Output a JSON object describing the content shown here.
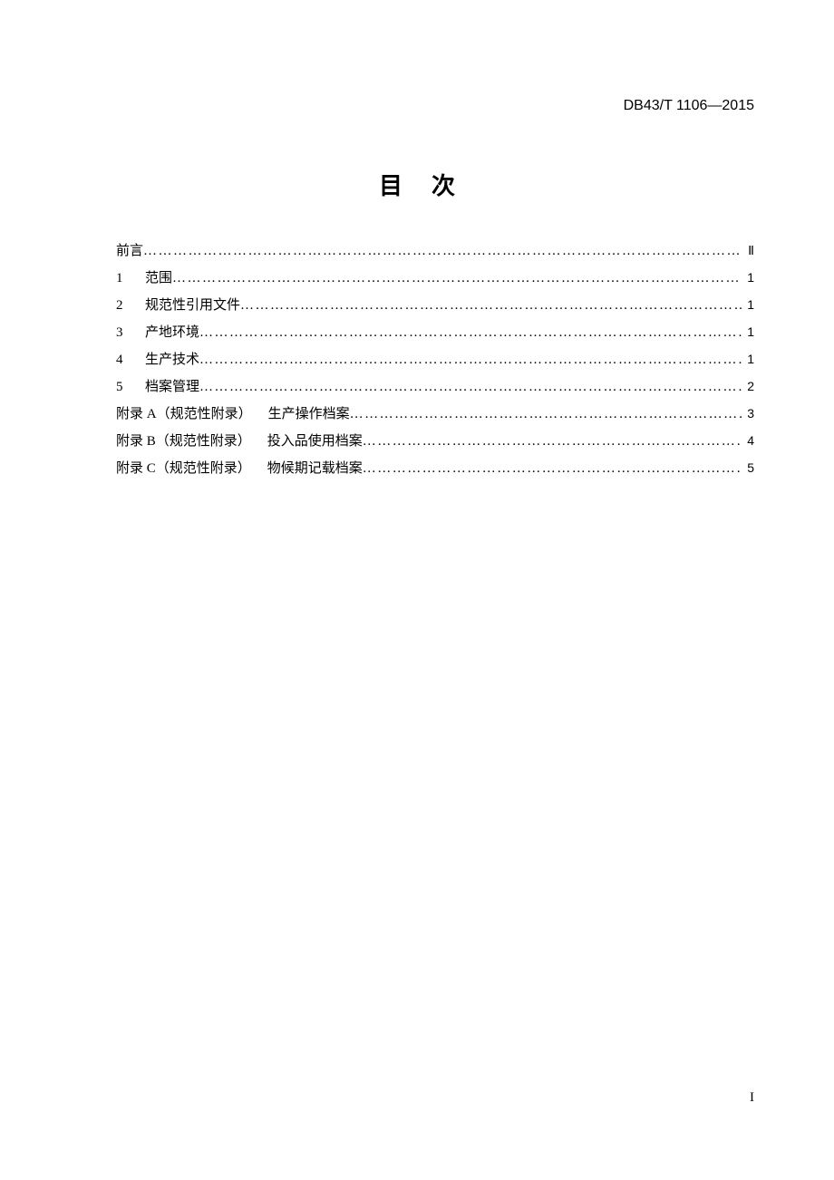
{
  "header": {
    "document_code": "DB43/T 1106—2015"
  },
  "title": "目次",
  "toc": {
    "entries": [
      {
        "num": "",
        "label": "前言",
        "page": "Ⅱ"
      },
      {
        "num": "1",
        "label": "范围",
        "page": "1"
      },
      {
        "num": "2",
        "label": "规范性引用文件",
        "page": "1"
      },
      {
        "num": "3",
        "label": "产地环境",
        "page": "1"
      },
      {
        "num": "4",
        "label": "生产技术",
        "page": "1"
      },
      {
        "num": "5",
        "label": "档案管理",
        "page": "2"
      }
    ],
    "appendices": [
      {
        "prefix": "附录 A（规范性附录）",
        "label": "生产操作档案",
        "page": "3"
      },
      {
        "prefix": "附录 B（规范性附录）",
        "label": "投入品使用档案",
        "page": "4"
      },
      {
        "prefix": "附录 C（规范性附录）",
        "label": "物候期记载档案",
        "page": "5"
      }
    ]
  },
  "footer": {
    "page_number": "I"
  },
  "style": {
    "dot_leader": "…………………………………………………………………………………………………………………………………………………………"
  }
}
